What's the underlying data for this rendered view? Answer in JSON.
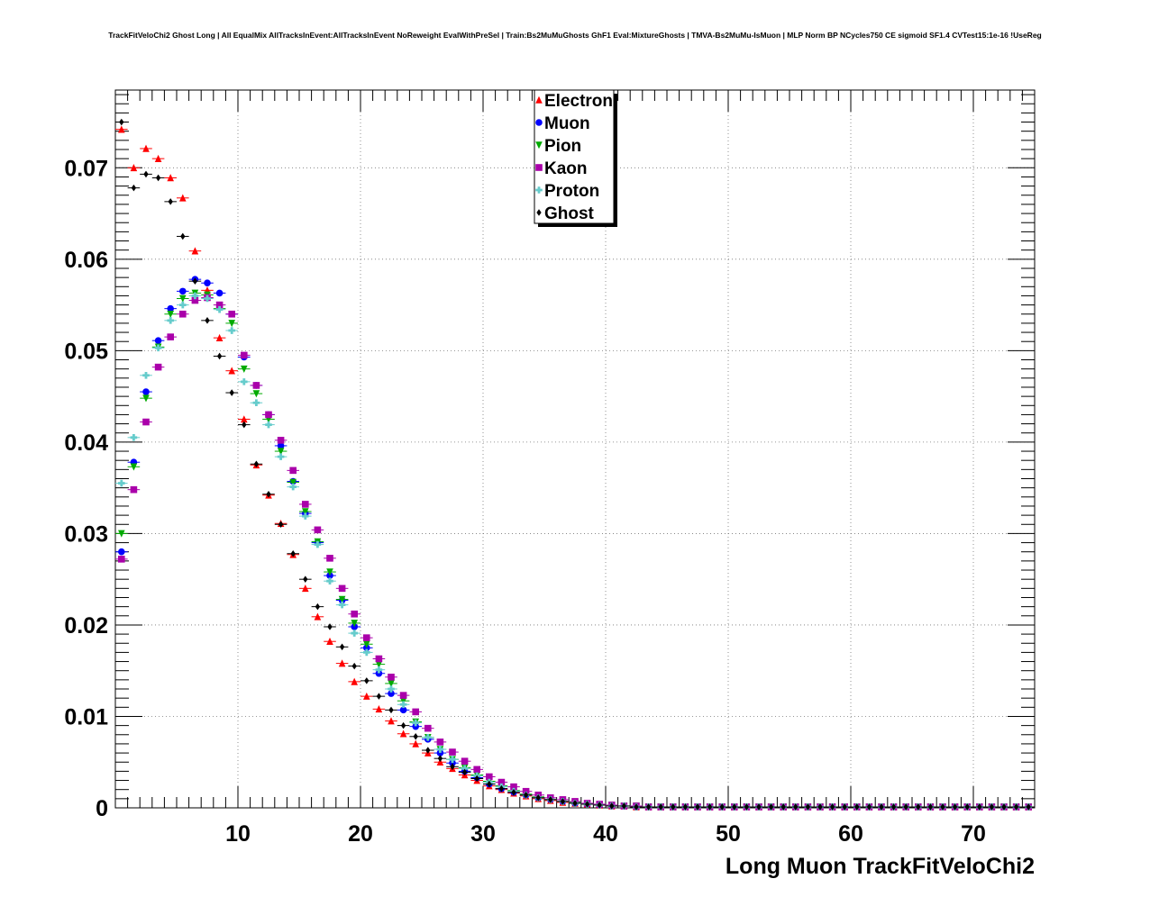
{
  "chart_data": {
    "type": "scatter",
    "title": "TrackFitVeloChi2 Ghost Long | All EqualMix AllTracksInEvent:AllTracksInEvent NoReweight EvalWithPreSel | Train:Bs2MuMuGhosts GhF1 Eval:MixtureGhosts | TMVA-Bs2MuMu-IsMuon | MLP Norm BP NCycles750 CE sigmoid SF1.4 CVTest15:1e-16 !UseReg",
    "xlabel": "Long Muon TrackFitVeloChi2",
    "ylabel": "",
    "xlim": [
      0,
      75
    ],
    "ylim": [
      0,
      0.0785
    ],
    "grid": true,
    "legend_position": "top-center",
    "x_ticks": [
      10,
      20,
      30,
      40,
      50,
      60,
      70
    ],
    "x_tick_labels": [
      "10",
      "20",
      "30",
      "40",
      "50",
      "60",
      "70"
    ],
    "y_ticks": [
      0,
      0.01,
      0.02,
      0.03,
      0.04,
      0.05,
      0.06,
      0.07
    ],
    "y_tick_labels": [
      "0",
      "0.01",
      "0.02",
      "0.03",
      "0.04",
      "0.05",
      "0.06",
      "0.07"
    ],
    "bin_width": 1,
    "x": [
      0.5,
      1.5,
      2.5,
      3.5,
      4.5,
      5.5,
      6.5,
      7.5,
      8.5,
      9.5,
      10.5,
      11.5,
      12.5,
      13.5,
      14.5,
      15.5,
      16.5,
      17.5,
      18.5,
      19.5,
      20.5,
      21.5,
      22.5,
      23.5,
      24.5,
      25.5,
      26.5,
      27.5,
      28.5,
      29.5,
      30.5,
      31.5,
      32.5,
      33.5,
      34.5,
      35.5,
      36.5,
      37.5,
      38.5,
      39.5,
      40.5,
      41.5,
      42.5,
      43.5,
      44.5,
      45.5,
      46.5,
      47.5,
      48.5,
      49.5,
      50.5,
      51.5,
      52.5,
      53.5,
      54.5,
      55.5,
      56.5,
      57.5,
      58.5,
      59.5,
      60.5,
      61.5,
      62.5,
      63.5,
      64.5,
      65.5,
      66.5,
      67.5,
      68.5,
      69.5,
      70.5,
      71.5,
      72.5,
      73.5,
      74.5
    ],
    "series": [
      {
        "name": "Electron",
        "color": "#ff0000",
        "marker": "triangle-up",
        "values": [
          0.0742,
          0.07,
          0.0721,
          0.071,
          0.0689,
          0.0667,
          0.0609,
          0.0566,
          0.0514,
          0.0478,
          0.0425,
          0.0375,
          0.0342,
          0.0311,
          0.0277,
          0.024,
          0.0209,
          0.0182,
          0.0158,
          0.0138,
          0.0122,
          0.0108,
          0.0095,
          0.0081,
          0.007,
          0.006,
          0.005,
          0.0043,
          0.0036,
          0.003,
          0.0024,
          0.002,
          0.0016,
          0.0013,
          0.001,
          0.0008,
          0.0006,
          0.0005,
          0.0004,
          0.0003,
          0.0002,
          0.0002,
          0.0001,
          0.0001,
          0.0001,
          0.0001,
          0.0001,
          0.0001,
          0.0001,
          0.0001,
          0.0001,
          0.0001,
          0.0001,
          0.0001,
          0.0001,
          0.0001,
          0.0001,
          0.0001,
          0.0001,
          0.0001,
          0.0001,
          0.0001,
          0.0001,
          0.0001,
          0.0001,
          0.0001,
          0.0001,
          0.0001,
          0.0001,
          0.0001,
          0.0001,
          0.0001,
          0.0001,
          0.0001,
          0.0001
        ]
      },
      {
        "name": "Muon",
        "color": "#0000ff",
        "marker": "circle",
        "values": [
          0.028,
          0.0378,
          0.0455,
          0.0511,
          0.0546,
          0.0565,
          0.0578,
          0.0574,
          0.0563,
          0.054,
          0.0493,
          0.0462,
          0.043,
          0.0396,
          0.0357,
          0.0322,
          0.029,
          0.0254,
          0.0227,
          0.0198,
          0.0175,
          0.0147,
          0.0125,
          0.0107,
          0.0089,
          0.0075,
          0.006,
          0.0049,
          0.004,
          0.0033,
          0.0026,
          0.0021,
          0.0017,
          0.0014,
          0.0011,
          0.0009,
          0.0007,
          0.0005,
          0.0004,
          0.0003,
          0.0002,
          0.0002,
          0.0001,
          0.0001,
          0.0001,
          0.0001,
          0.0001,
          0.0001,
          0.0001,
          0.0001,
          0.0001,
          0.0001,
          0.0001,
          0.0001,
          0.0001,
          0.0001,
          0.0001,
          0.0001,
          0.0001,
          0.0001,
          0.0001,
          0.0001,
          0.0001,
          0.0001,
          0.0001,
          0.0001,
          0.0001,
          0.0001,
          0.0001,
          0.0001,
          0.0001,
          0.0001,
          0.0001,
          0.0001,
          0.0001
        ]
      },
      {
        "name": "Pion",
        "color": "#00aa00",
        "marker": "triangle-down",
        "values": [
          0.03,
          0.0373,
          0.0448,
          0.0504,
          0.054,
          0.0557,
          0.0563,
          0.0561,
          0.0546,
          0.053,
          0.048,
          0.0453,
          0.0425,
          0.039,
          0.0356,
          0.0324,
          0.0291,
          0.0258,
          0.0228,
          0.0202,
          0.0179,
          0.0157,
          0.0136,
          0.0117,
          0.0094,
          0.0077,
          0.0064,
          0.0053,
          0.0044,
          0.0036,
          0.0029,
          0.0024,
          0.0019,
          0.0015,
          0.0012,
          0.0009,
          0.0007,
          0.0006,
          0.0004,
          0.0003,
          0.0003,
          0.0002,
          0.0002,
          0.0001,
          0.0001,
          0.0001,
          0.0001,
          0.0001,
          0.0001,
          0.0001,
          0.0001,
          0.0001,
          0.0001,
          0.0001,
          0.0001,
          0.0001,
          0.0001,
          0.0001,
          0.0001,
          0.0001,
          0.0001,
          0.0001,
          0.0001,
          0.0001,
          0.0001,
          0.0001,
          0.0001,
          0.0001,
          0.0001,
          0.0001,
          0.0001,
          0.0001,
          0.0001,
          0.0001,
          0.0001
        ]
      },
      {
        "name": "Kaon",
        "color": "#aa00aa",
        "marker": "square",
        "values": [
          0.0272,
          0.0348,
          0.0422,
          0.0482,
          0.0515,
          0.054,
          0.0555,
          0.0558,
          0.055,
          0.054,
          0.0495,
          0.0462,
          0.043,
          0.0402,
          0.0369,
          0.0332,
          0.0304,
          0.0273,
          0.024,
          0.0212,
          0.0186,
          0.0163,
          0.0143,
          0.0123,
          0.0105,
          0.0087,
          0.0072,
          0.0061,
          0.0051,
          0.0042,
          0.0034,
          0.0028,
          0.0023,
          0.0018,
          0.0014,
          0.0011,
          0.0009,
          0.0007,
          0.0005,
          0.0004,
          0.0003,
          0.0002,
          0.0002,
          0.0001,
          0.0001,
          0.0001,
          0.0001,
          0.0001,
          0.0001,
          0.0001,
          0.0001,
          0.0001,
          0.0001,
          0.0001,
          0.0001,
          0.0001,
          0.0001,
          0.0001,
          0.0001,
          0.0001,
          0.0001,
          0.0001,
          0.0001,
          0.0001,
          0.0001,
          0.0001,
          0.0001,
          0.0001,
          0.0001,
          0.0001,
          0.0001,
          0.0001,
          0.0001,
          0.0001,
          0.0001
        ]
      },
      {
        "name": "Proton",
        "color": "#66cccc",
        "marker": "cross",
        "values": [
          0.0355,
          0.0405,
          0.0473,
          0.0503,
          0.0533,
          0.055,
          0.056,
          0.0557,
          0.0545,
          0.0522,
          0.0466,
          0.0443,
          0.0419,
          0.0384,
          0.0351,
          0.0319,
          0.0288,
          0.0248,
          0.0222,
          0.0191,
          0.017,
          0.0151,
          0.013,
          0.0113,
          0.0093,
          0.0077,
          0.0064,
          0.0053,
          0.0043,
          0.0035,
          0.0028,
          0.0023,
          0.0018,
          0.0014,
          0.0011,
          0.0009,
          0.0007,
          0.0005,
          0.0004,
          0.0003,
          0.0002,
          0.0002,
          0.0001,
          0.0001,
          0.0001,
          0.0001,
          0.0001,
          0.0001,
          0.0001,
          0.0001,
          0.0001,
          0.0001,
          0.0001,
          0.0001,
          0.0001,
          0.0001,
          0.0001,
          0.0001,
          0.0001,
          0.0001,
          0.0001,
          0.0001,
          0.0001,
          0.0001,
          0.0001,
          0.0001,
          0.0001,
          0.0001,
          0.0001,
          0.0001,
          0.0001,
          0.0001,
          0.0001,
          0.0001,
          0.0001
        ]
      },
      {
        "name": "Ghost",
        "color": "#000000",
        "marker": "diamond",
        "values": [
          0.075,
          0.0678,
          0.0693,
          0.0689,
          0.0663,
          0.0625,
          0.0576,
          0.0533,
          0.0494,
          0.0454,
          0.0419,
          0.0376,
          0.0343,
          0.031,
          0.0278,
          0.025,
          0.022,
          0.0198,
          0.0176,
          0.0155,
          0.0139,
          0.0122,
          0.0107,
          0.009,
          0.0078,
          0.0063,
          0.0054,
          0.0045,
          0.0039,
          0.0032,
          0.0026,
          0.0021,
          0.0017,
          0.0014,
          0.0011,
          0.0009,
          0.0007,
          0.0005,
          0.0004,
          0.0003,
          0.0002,
          0.0002,
          0.0001,
          0.0001,
          0.0001,
          0.0001,
          0.0001,
          0.0001,
          0.0001,
          0.0001,
          0.0001,
          0.0001,
          0.0001,
          0.0001,
          0.0001,
          0.0001,
          0.0001,
          0.0001,
          0.0001,
          0.0001,
          0.0001,
          0.0001,
          0.0001,
          0.0001,
          0.0001,
          0.0001,
          0.0001,
          0.0001,
          0.0001,
          0.0001,
          0.0001,
          0.0001,
          0.0001,
          0.0001,
          0.0001
        ]
      }
    ]
  }
}
